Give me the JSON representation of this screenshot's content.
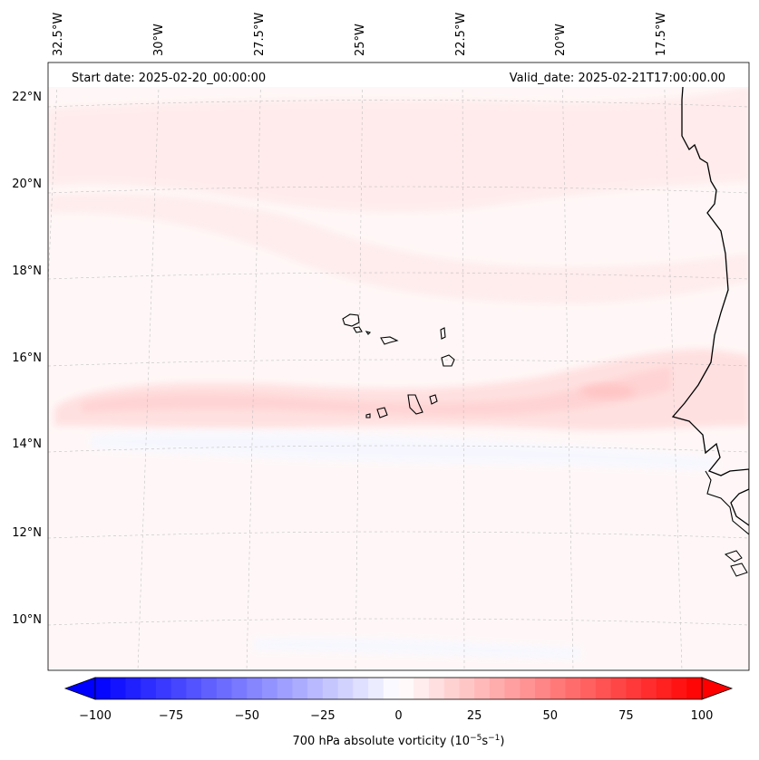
{
  "header": {
    "start_date": "Start date: 2025-02-20_00:00:00",
    "valid_date": "Valid_date: 2025-02-21T17:00:00.00"
  },
  "longitude_labels": [
    "32.5°W",
    "30°W",
    "27.5°W",
    "25°W",
    "22.5°W",
    "20°W",
    "17.5°W"
  ],
  "latitude_labels": [
    "22°N",
    "20°N",
    "18°N",
    "16°N",
    "14°N",
    "12°N",
    "10°N"
  ],
  "colorbar": {
    "label_prefix": "700 hPa absolute vorticity (10",
    "label_exp1": "−5",
    "label_mid": "s",
    "label_exp2": "−1",
    "label_suffix": ")",
    "ticks": [
      "−100",
      "−75",
      "−50",
      "−25",
      "0",
      "25",
      "50",
      "75",
      "100"
    ],
    "min": -100,
    "max": 100,
    "levels": 40,
    "colors": {
      "negative_end": "#0000ff",
      "zero": "#ffffff",
      "positive_end": "#ff0000"
    }
  },
  "field_colors": {
    "background": "#fff7f7",
    "weak_positive": "#ffeaea",
    "moderate_positive": "#ffdede",
    "strong_positive": "#ffd2d2",
    "weak_negative": "#f6f8ff"
  }
}
